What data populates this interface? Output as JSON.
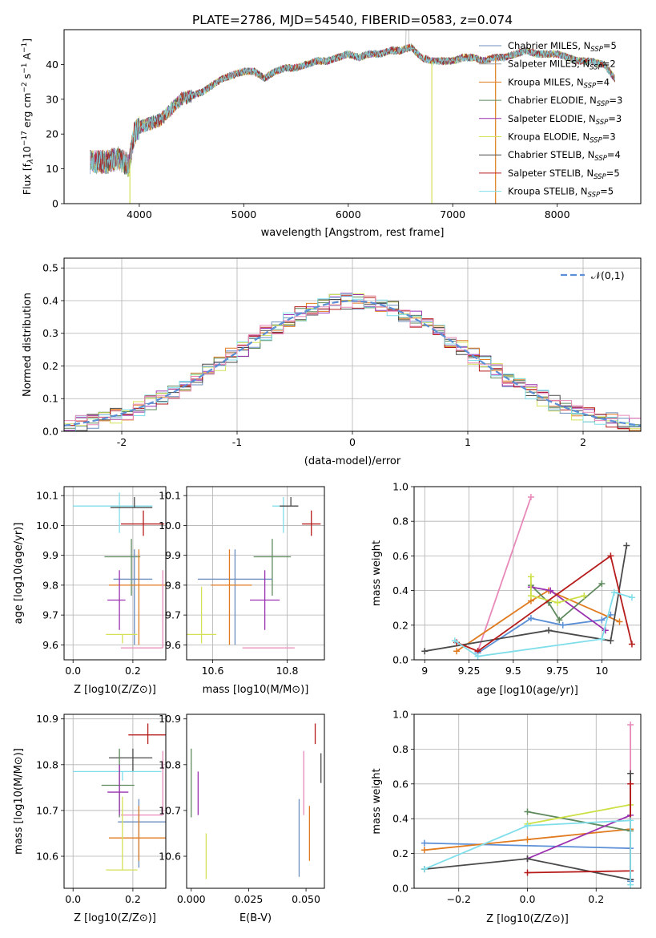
{
  "figure_title": "PLATE=2786, MJD=54540, FIBERID=0583, z=0.074",
  "chart_data": [
    {
      "id": "spectrum",
      "type": "line",
      "title": "PLATE=2786, MJD=54540, FIBERID=0583, z=0.074",
      "xlabel": "wavelength [Angstrom, rest frame]",
      "ylabel": "Flux [fλ10⁻¹⁷ erg cm⁻² s⁻¹ A⁻¹]",
      "xlim": [
        3280,
        8800
      ],
      "ylim": [
        0,
        50
      ],
      "xticks": [
        4000,
        5000,
        6000,
        7000,
        8000
      ],
      "yticks": [
        0,
        10,
        20,
        30,
        40
      ],
      "grid": false,
      "legend_position": "right",
      "continuum": {
        "x": [
          3530,
          3600,
          3700,
          3800,
          3900,
          3950,
          4000,
          4100,
          4200,
          4300,
          4400,
          4500,
          4600,
          4700,
          4800,
          4900,
          5000,
          5100,
          5200,
          5300,
          5400,
          5500,
          5600,
          5700,
          5800,
          5900,
          6000,
          6100,
          6200,
          6300,
          6400,
          6500,
          6600,
          6700,
          6800,
          6900,
          7000,
          7100,
          7200,
          7300,
          7400,
          7500,
          7600,
          7700,
          7800,
          7900,
          8000,
          8100,
          8200,
          8300,
          8450,
          8550
        ],
        "y": [
          12,
          12,
          12,
          13,
          11,
          20,
          22,
          23,
          24,
          27,
          30,
          31,
          32,
          34,
          36,
          37,
          38,
          38,
          36,
          38,
          39,
          39,
          40,
          41,
          41,
          42,
          43,
          42,
          43,
          43,
          44,
          44,
          45,
          42,
          41,
          41,
          41,
          42,
          42,
          41,
          42,
          42,
          43,
          44,
          43,
          43,
          43,
          42,
          41,
          41,
          40,
          36
        ]
      },
      "dips": [
        {
          "x": 3910,
          "y": 0
        },
        {
          "x": 6800,
          "y": 0
        },
        {
          "x": 7410,
          "y": 0
        }
      ],
      "series": [
        {
          "name": "Chabrier MILES, N_SSP=5",
          "color": "#6c8ebf"
        },
        {
          "name": "Salpeter MILES, N_SSP=2",
          "color": "#9e9e9e"
        },
        {
          "name": "Kroupa MILES, N_SSP=4",
          "color": "#e07b1f"
        },
        {
          "name": "Chabrier ELODIE, N_SSP=3",
          "color": "#5e8a5e"
        },
        {
          "name": "Salpeter ELODIE, N_SSP=3",
          "color": "#9b30b0"
        },
        {
          "name": "Kroupa ELODIE, N_SSP=3",
          "color": "#d4e157"
        },
        {
          "name": "Chabrier STELIB, N_SSP=4",
          "color": "#4a4a4a"
        },
        {
          "name": "Salpeter STELIB, N_SSP=5",
          "color": "#b71c1c"
        },
        {
          "name": "Kroupa STELIB, N_SSP=5",
          "color": "#80deea"
        }
      ]
    },
    {
      "id": "residuals",
      "type": "line",
      "xlabel": "(data-model)/error",
      "ylabel": "Normed distribution",
      "xlim": [
        -2.5,
        2.5
      ],
      "ylim": [
        0,
        0.53
      ],
      "xticks": [
        -2,
        -1,
        0,
        1,
        2
      ],
      "yticks": [
        0.0,
        0.1,
        0.2,
        0.3,
        0.4,
        0.5
      ],
      "grid": true,
      "legend_position": "top-right",
      "series": [
        {
          "name": "𝒩(0,1)",
          "color": "#5b8fd6",
          "style": "dashed"
        }
      ],
      "histogram_colors": [
        "#6c8ebf",
        "#e07b1f",
        "#5e8a5e",
        "#9b30b0",
        "#d4e157",
        "#4a4a4a",
        "#b71c1c",
        "#80deea",
        "#e889b9"
      ]
    },
    {
      "id": "age_vs_Z",
      "type": "scatter",
      "xlabel": "Z [log10(Z/Z⊙)]",
      "ylabel": "age  [log10(age/yr)]",
      "xlim": [
        -0.03,
        0.31
      ],
      "ylim": [
        9.55,
        10.13
      ],
      "xticks": [
        0.0,
        0.2
      ],
      "yticks": [
        9.6,
        9.7,
        9.8,
        9.9,
        10.0,
        10.1
      ],
      "grid": true,
      "points": [
        {
          "x": 0.155,
          "y": 10.065,
          "xerr": [
            0.155,
            0.11
          ],
          "yerr": [
            0.09,
            0.045
          ],
          "color": "#80deea"
        },
        {
          "x": 0.205,
          "y": 10.06,
          "xerr": [
            0.08,
            0.06
          ],
          "yerr": [
            0.0,
            0.035
          ],
          "color": "#4a4a4a"
        },
        {
          "x": 0.235,
          "y": 10.005,
          "xerr": [
            0.075,
            0.07
          ],
          "yerr": [
            0.04,
            0.045
          ],
          "color": "#b71c1c"
        },
        {
          "x": 0.195,
          "y": 9.895,
          "xerr": [
            0.09,
            0.03
          ],
          "yerr": [
            0.13,
            0.06
          ],
          "color": "#5e8a5e"
        },
        {
          "x": 0.205,
          "y": 9.82,
          "xerr": [
            0.07,
            0.06
          ],
          "yerr": [
            0.22,
            0.1
          ],
          "color": "#6c8ebf"
        },
        {
          "x": 0.22,
          "y": 9.8,
          "xerr": [
            0.1,
            0.09
          ],
          "yerr": [
            0.2,
            0.12
          ],
          "color": "#e07b1f"
        },
        {
          "x": 0.155,
          "y": 9.75,
          "xerr": [
            0.04,
            0.02
          ],
          "yerr": [
            0.1,
            0.1
          ],
          "color": "#9b30b0"
        },
        {
          "x": 0.165,
          "y": 9.635,
          "xerr": [
            0.055,
            0.05
          ],
          "yerr": [
            0.03,
            0.0
          ],
          "color": "#d4e157"
        },
        {
          "x": 0.3,
          "y": 9.59,
          "xerr": [
            0.14,
            0.0
          ],
          "yerr": [
            0.0,
            0.26
          ],
          "color": "#e889b9"
        }
      ]
    },
    {
      "id": "age_vs_mass",
      "type": "scatter",
      "xlabel": "mass [log10(M/M⊙)]",
      "ylabel": "",
      "xlim": [
        10.53,
        10.9
      ],
      "ylim": [
        9.55,
        10.13
      ],
      "xticks": [
        10.6,
        10.8
      ],
      "yticks": [
        9.6,
        9.7,
        9.8,
        9.9,
        10.0,
        10.1
      ],
      "grid": true,
      "points": [
        {
          "x": 10.79,
          "y": 10.065,
          "xerr": [
            0.03,
            0.0
          ],
          "yerr": [
            0.09,
            0.03
          ],
          "color": "#80deea"
        },
        {
          "x": 10.81,
          "y": 10.065,
          "xerr": [
            0.03,
            0.02
          ],
          "yerr": [
            0.0,
            0.03
          ],
          "color": "#4a4a4a"
        },
        {
          "x": 10.865,
          "y": 10.005,
          "xerr": [
            0.025,
            0.025
          ],
          "yerr": [
            0.04,
            0.045
          ],
          "color": "#b71c1c"
        },
        {
          "x": 10.76,
          "y": 9.895,
          "xerr": [
            0.05,
            0.05
          ],
          "yerr": [
            0.13,
            0.06
          ],
          "color": "#5e8a5e"
        },
        {
          "x": 10.66,
          "y": 9.82,
          "xerr": [
            0.1,
            0.1
          ],
          "yerr": [
            0.22,
            0.1
          ],
          "color": "#6c8ebf"
        },
        {
          "x": 10.645,
          "y": 9.8,
          "xerr": [
            0.05,
            0.06
          ],
          "yerr": [
            0.2,
            0.12
          ],
          "color": "#e07b1f"
        },
        {
          "x": 10.74,
          "y": 9.75,
          "xerr": [
            0.04,
            0.04
          ],
          "yerr": [
            0.1,
            0.1
          ],
          "color": "#9b30b0"
        },
        {
          "x": 10.57,
          "y": 9.635,
          "xerr": [
            0.04,
            0.04
          ],
          "yerr": [
            0.03,
            0.16
          ],
          "color": "#d4e157"
        },
        {
          "x": 10.75,
          "y": 9.59,
          "xerr": [
            0.07,
            0.07
          ],
          "yerr": [
            0.0,
            0.0
          ],
          "color": "#e889b9"
        }
      ]
    },
    {
      "id": "weight_vs_age",
      "type": "line",
      "xlabel": "age  [log10(age/yr)]",
      "ylabel": "mass weight",
      "xlim": [
        8.94,
        10.22
      ],
      "ylim": [
        0.0,
        1.0
      ],
      "xticks": [
        9.0,
        9.25,
        9.5,
        9.75,
        10.0
      ],
      "yticks": [
        0.0,
        0.2,
        0.4,
        0.6,
        0.8,
        1.0
      ],
      "grid": true,
      "series": [
        {
          "name": "pink",
          "color": "#e889b9",
          "x": [
            9.3,
            9.6
          ],
          "y": [
            0.05,
            0.94
          ]
        },
        {
          "name": "blue",
          "color": "#5b8fd6",
          "x": [
            9.3,
            9.6,
            9.78,
            10.0,
            10.05
          ],
          "y": [
            0.04,
            0.24,
            0.2,
            0.23,
            0.26
          ]
        },
        {
          "name": "orange",
          "color": "#e07b1f",
          "x": [
            9.18,
            9.6,
            9.7,
            10.1
          ],
          "y": [
            0.05,
            0.34,
            0.4,
            0.22
          ]
        },
        {
          "name": "green",
          "color": "#5e8a5e",
          "x": [
            9.6,
            9.7,
            9.76,
            10.0
          ],
          "y": [
            0.43,
            0.33,
            0.23,
            0.44
          ]
        },
        {
          "name": "purple",
          "color": "#9b30b0",
          "x": [
            9.6,
            9.71,
            10.02
          ],
          "y": [
            0.42,
            0.4,
            0.17
          ]
        },
        {
          "name": "lime",
          "color": "#cde046",
          "x": [
            9.6,
            9.6,
            9.75,
            9.9
          ],
          "y": [
            0.48,
            0.37,
            0.33,
            0.37
          ]
        },
        {
          "name": "darkgray",
          "color": "#4a4a4a",
          "x": [
            9.0,
            9.7,
            10.05,
            10.14
          ],
          "y": [
            0.05,
            0.17,
            0.11,
            0.66
          ]
        },
        {
          "name": "red",
          "color": "#b71c1c",
          "x": [
            9.18,
            9.3,
            10.05,
            10.17
          ],
          "y": [
            0.1,
            0.05,
            0.6,
            0.09
          ]
        },
        {
          "name": "cyan",
          "color": "#80deea",
          "x": [
            9.17,
            9.3,
            10.0,
            10.07,
            10.17
          ],
          "y": [
            0.11,
            0.02,
            0.12,
            0.39,
            0.36
          ]
        }
      ]
    },
    {
      "id": "mass_vs_Z",
      "type": "scatter",
      "xlabel": "Z [log10(Z/Z⊙)]",
      "ylabel": "mass [log10(M/M⊙)]",
      "xlim": [
        -0.03,
        0.31
      ],
      "ylim": [
        10.53,
        10.91
      ],
      "xticks": [
        0.0,
        0.2
      ],
      "yticks": [
        10.6,
        10.7,
        10.8,
        10.9
      ],
      "grid": true,
      "points": [
        {
          "x": 0.25,
          "y": 10.865,
          "xerr": [
            0.065,
            0.06
          ],
          "yerr": [
            0.02,
            0.025
          ],
          "color": "#b71c1c"
        },
        {
          "x": 0.2,
          "y": 10.815,
          "xerr": [
            0.08,
            0.065
          ],
          "yerr": [
            0.03,
            0.02
          ],
          "color": "#4a4a4a"
        },
        {
          "x": 0.165,
          "y": 10.785,
          "xerr": [
            0.165,
            0.13
          ],
          "yerr": [
            0.02,
            0.0
          ],
          "color": "#80deea"
        },
        {
          "x": 0.155,
          "y": 10.755,
          "xerr": [
            0.06,
            0.05
          ],
          "yerr": [
            0.07,
            0.08
          ],
          "color": "#5e8a5e"
        },
        {
          "x": 0.155,
          "y": 10.74,
          "xerr": [
            0.04,
            0.03
          ],
          "yerr": [
            0.05,
            0.06
          ],
          "color": "#9b30b0"
        },
        {
          "x": 0.3,
          "y": 10.69,
          "xerr": [
            0.14,
            0.0
          ],
          "yerr": [
            0.0,
            0.14
          ],
          "color": "#e889b9"
        },
        {
          "x": 0.22,
          "y": 10.675,
          "xerr": [
            0.07,
            0.09
          ],
          "yerr": [
            0.1,
            0.05
          ],
          "color": "#6c8ebf"
        },
        {
          "x": 0.22,
          "y": 10.64,
          "xerr": [
            0.1,
            0.09
          ],
          "yerr": [
            0.05,
            0.07
          ],
          "color": "#e07b1f"
        },
        {
          "x": 0.165,
          "y": 10.57,
          "xerr": [
            0.055,
            0.05
          ],
          "yerr": [
            0.0,
            0.16
          ],
          "color": "#d4e157"
        }
      ]
    },
    {
      "id": "mass_vs_ebv",
      "type": "scatter",
      "xlabel": "E(B-V)",
      "ylabel": "",
      "xlim": [
        -0.002,
        0.058
      ],
      "ylim": [
        10.53,
        10.91
      ],
      "xticks": [
        0.0,
        0.025,
        0.05
      ],
      "xtick_labels": [
        "0.000",
        "0.025",
        "0.050"
      ],
      "yticks": [
        10.6,
        10.7,
        10.8,
        10.9
      ],
      "grid": false,
      "points": [
        {
          "x": 0.054,
          "y": 10.865,
          "yerr": [
            0.02,
            0.025
          ],
          "color": "#b71c1c"
        },
        {
          "x": 0.0565,
          "y": 10.79,
          "yerr": [
            0.03,
            0.035
          ],
          "color": "#4a4a4a"
        },
        {
          "x": 0.0,
          "y": 10.755,
          "yerr": [
            0.07,
            0.08
          ],
          "color": "#5e8a5e"
        },
        {
          "x": 0.003,
          "y": 10.74,
          "yerr": [
            0.05,
            0.045
          ],
          "color": "#9b30b0"
        },
        {
          "x": 0.049,
          "y": 10.69,
          "yerr": [
            0.0,
            0.14
          ],
          "color": "#e889b9"
        },
        {
          "x": 0.047,
          "y": 10.675,
          "yerr": [
            0.12,
            0.05
          ],
          "color": "#6c8ebf"
        },
        {
          "x": 0.0515,
          "y": 10.64,
          "yerr": [
            0.05,
            0.07
          ],
          "color": "#e07b1f"
        },
        {
          "x": 0.0065,
          "y": 10.59,
          "yerr": [
            0.04,
            0.06
          ],
          "color": "#d4e157"
        }
      ]
    },
    {
      "id": "weight_vs_Z",
      "type": "line",
      "xlabel": "Z [log10(Z/Z⊙)]",
      "ylabel": "mass weight",
      "xlim": [
        -0.33,
        0.33
      ],
      "ylim": [
        0.0,
        1.0
      ],
      "xticks": [
        -0.2,
        0.0,
        0.2
      ],
      "yticks": [
        0.0,
        0.2,
        0.4,
        0.6,
        0.8,
        1.0
      ],
      "grid": true,
      "series": [
        {
          "name": "pink",
          "color": "#e889b9",
          "x": [
            0.3,
            0.3
          ],
          "y": [
            0.05,
            0.94
          ]
        },
        {
          "name": "blue",
          "color": "#5b8fd6",
          "x": [
            -0.3,
            0.3,
            0.3
          ],
          "y": [
            0.26,
            0.23,
            0.04
          ]
        },
        {
          "name": "orange",
          "color": "#e07b1f",
          "x": [
            -0.3,
            0.0,
            0.3
          ],
          "y": [
            0.22,
            0.28,
            0.34
          ]
        },
        {
          "name": "green",
          "color": "#5e8a5e",
          "x": [
            0.0,
            0.3,
            0.3
          ],
          "y": [
            0.44,
            0.33,
            0.05
          ]
        },
        {
          "name": "purple",
          "color": "#9b30b0",
          "x": [
            0.0,
            0.3,
            0.3
          ],
          "y": [
            0.17,
            0.42,
            0.05
          ]
        },
        {
          "name": "lime",
          "color": "#cde046",
          "x": [
            0.0,
            0.3
          ],
          "y": [
            0.37,
            0.48
          ]
        },
        {
          "name": "darkgray",
          "color": "#4a4a4a",
          "x": [
            -0.3,
            0.0,
            0.3,
            0.3
          ],
          "y": [
            0.11,
            0.17,
            0.05,
            0.66
          ]
        },
        {
          "name": "red",
          "color": "#b71c1c",
          "x": [
            0.0,
            0.3,
            0.3
          ],
          "y": [
            0.09,
            0.1,
            0.6
          ]
        },
        {
          "name": "cyan",
          "color": "#80deea",
          "x": [
            -0.3,
            0.0,
            0.3,
            0.3
          ],
          "y": [
            0.11,
            0.36,
            0.39,
            0.02
          ]
        }
      ]
    }
  ]
}
